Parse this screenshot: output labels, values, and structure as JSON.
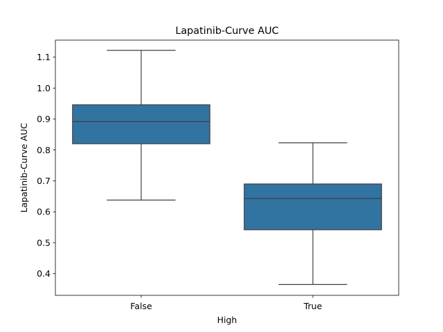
{
  "chart_data": {
    "type": "box",
    "title": "Lapatinib-Curve AUC",
    "xlabel": "High",
    "ylabel": "Lapatinib-Curve AUC",
    "ylim": [
      0.33,
      1.155
    ],
    "yticks": [
      0.4,
      0.5,
      0.6,
      0.7,
      0.8,
      0.9,
      1.0,
      1.1
    ],
    "ytick_labels": [
      "0.4",
      "0.5",
      "0.6",
      "0.7",
      "0.8",
      "0.9",
      "1.0",
      "1.1"
    ],
    "categories": [
      "False",
      "True"
    ],
    "boxes": [
      {
        "category": "False",
        "whisker_low": 0.638,
        "q1": 0.82,
        "median": 0.892,
        "q3": 0.946,
        "whisker_high": 1.122
      },
      {
        "category": "True",
        "whisker_low": 0.365,
        "q1": 0.542,
        "median": 0.643,
        "q3": 0.69,
        "whisker_high": 0.823
      }
    ],
    "box_color": "#3274a1",
    "line_color": "#3f3f3f",
    "grid": false,
    "legend": "none"
  }
}
